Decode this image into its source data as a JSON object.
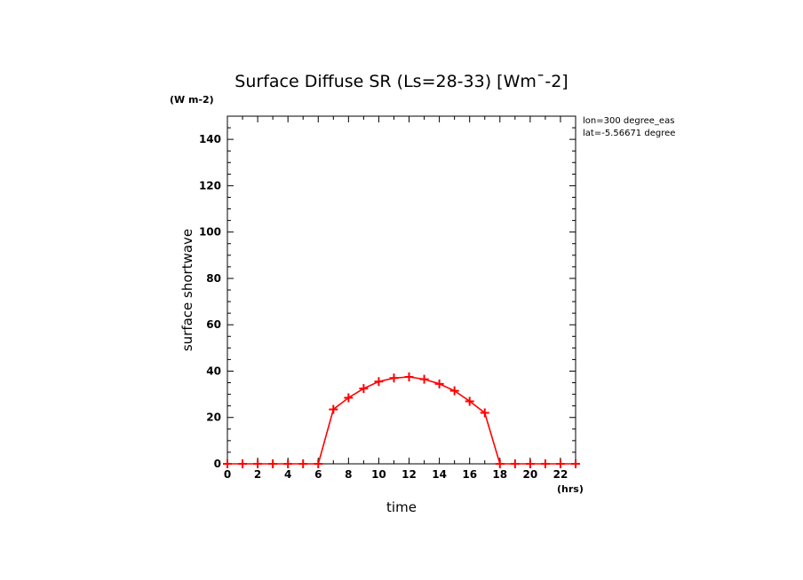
{
  "chart_data": {
    "type": "line",
    "title": "Surface Diffuse SR (Ls=28-33) [Wm¯-2]",
    "xlabel": "time",
    "ylabel": "surface shortwave",
    "xunit": "(hrs)",
    "yunit": "(W m-2)",
    "xlim": [
      0,
      23
    ],
    "ylim": [
      0,
      150
    ],
    "xticks": [
      0,
      2,
      4,
      6,
      8,
      10,
      12,
      14,
      16,
      18,
      20,
      22
    ],
    "yticks": [
      0,
      20,
      40,
      60,
      80,
      100,
      120,
      140
    ],
    "info": [
      "lon=300 degree_eas",
      "lat=-5.56671 degree"
    ],
    "grid": false,
    "color": "#ff0000",
    "series": [
      {
        "x": [
          0,
          1,
          2,
          3,
          4,
          5,
          6,
          7,
          8,
          9,
          10,
          11,
          12,
          13,
          14,
          15,
          16,
          17,
          18,
          19,
          20,
          21,
          22,
          23
        ],
        "values": [
          0,
          0,
          0,
          0,
          0,
          0,
          0,
          23.5,
          28.5,
          32.5,
          35.5,
          37,
          37.5,
          36.5,
          34.5,
          31.5,
          27,
          22,
          0,
          0,
          0,
          0,
          0,
          0
        ]
      }
    ]
  }
}
